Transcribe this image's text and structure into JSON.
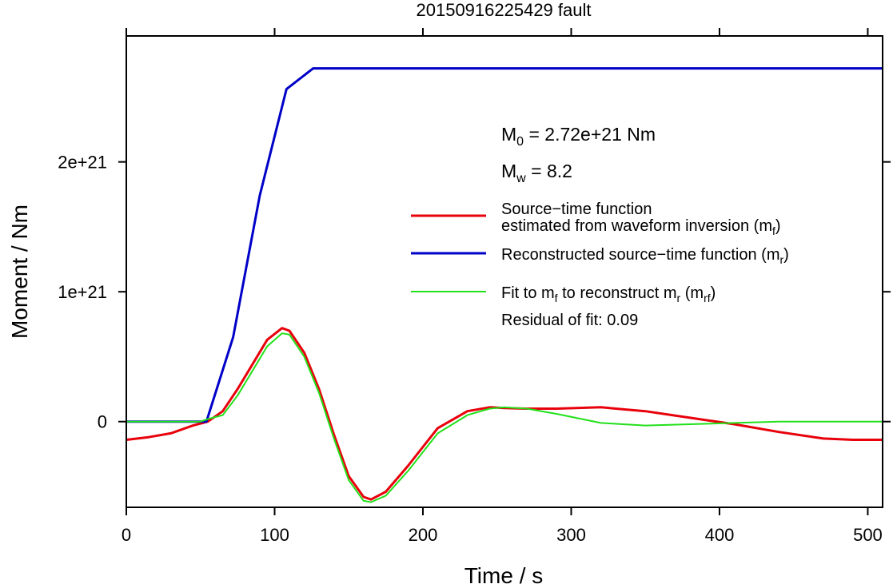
{
  "chart_data": {
    "type": "line",
    "title": "20150916225429 fault",
    "xlabel": "Time / s",
    "ylabel": "Moment / Nm",
    "xlim": [
      0,
      510
    ],
    "ylim": [
      -6.6e+20,
      2.97e+21
    ],
    "x_ticks": [
      0,
      100,
      200,
      300,
      400,
      500
    ],
    "x_tick_labels": [
      "0",
      "100",
      "200",
      "300",
      "400",
      "500"
    ],
    "y_ticks": [
      0,
      1e+21,
      2e+21
    ],
    "y_tick_labels": [
      "0",
      "1e+21",
      "2e+21"
    ],
    "grid": false,
    "annotations": {
      "m0": {
        "base": "M",
        "sub": "0",
        "rest": " = 2.72e+21 Nm"
      },
      "mw": {
        "base": "M",
        "sub": "w",
        "rest": " = 8.2"
      },
      "residual": "Residual of fit: 0.09"
    },
    "legend": {
      "placement": "right",
      "entries": [
        {
          "series": "mf",
          "line1": "Source−time function",
          "line2_pre": "estimated from waveform inversion (m",
          "line2_sub": "f",
          "line2_post": ")"
        },
        {
          "series": "mr",
          "line1_pre": "Reconstructed source−time function (m",
          "line1_sub": "r",
          "line1_post": ")"
        },
        {
          "series": "mrf",
          "line1_pre": "Fit to m",
          "line1_sub": "f",
          "line1_mid": " to reconstruct m",
          "line1_sub2": "r",
          "line1_mid2": " (m",
          "line1_sub3": "rf",
          "line1_post": ")"
        }
      ]
    },
    "series": [
      {
        "id": "mf",
        "color": "#e8000b",
        "x": [
          0,
          15,
          30,
          45,
          55,
          65,
          75,
          85,
          95,
          105,
          110,
          120,
          130,
          140,
          150,
          160,
          165,
          175,
          190,
          210,
          230,
          245,
          255,
          270,
          290,
          320,
          350,
          380,
          410,
          440,
          470,
          490,
          510
        ],
        "y": [
          -1.4e+20,
          -1.2e+20,
          -9e+19,
          -3e+19,
          0,
          8e+19,
          2.5e+20,
          4.4e+20,
          6.3e+20,
          7.2e+20,
          7e+20,
          5.3e+20,
          2.5e+20,
          -1e+20,
          -4.2e+20,
          -5.8e+20,
          -6e+20,
          -5.4e+20,
          -3.4e+20,
          -5e+19,
          8e+19,
          1.1e+20,
          1.05e+20,
          1e+20,
          1e+20,
          1.1e+20,
          8e+19,
          3e+19,
          -2e+19,
          -8e+19,
          -1.3e+20,
          -1.4e+20,
          -1.4e+20
        ]
      },
      {
        "id": "mr",
        "color": "#0000c8",
        "x": [
          0,
          54,
          72,
          90,
          108,
          126,
          510
        ],
        "y": [
          0,
          0,
          6.5e+20,
          1.74e+21,
          2.56e+21,
          2.72e+21,
          2.72e+21
        ]
      },
      {
        "id": "mrf",
        "color": "#22e01a",
        "x": [
          0,
          50,
          55,
          65,
          75,
          85,
          95,
          105,
          110,
          120,
          130,
          140,
          150,
          160,
          165,
          175,
          190,
          210,
          230,
          245,
          255,
          270,
          290,
          320,
          350,
          380,
          410,
          440,
          510
        ],
        "y": [
          0,
          0,
          2e+19,
          5e+19,
          2e+20,
          3.9e+20,
          5.8e+20,
          6.8e+20,
          6.7e+20,
          5e+20,
          2.2e+20,
          -1.3e+20,
          -4.5e+20,
          -6.1e+20,
          -6.2e+20,
          -5.7e+20,
          -3.8e+20,
          -9e+19,
          5e+19,
          1e+20,
          1.1e+20,
          1e+20,
          6e+19,
          -1e+19,
          -3e+19,
          -2e+19,
          -1e+19,
          0,
          0
        ]
      }
    ]
  }
}
